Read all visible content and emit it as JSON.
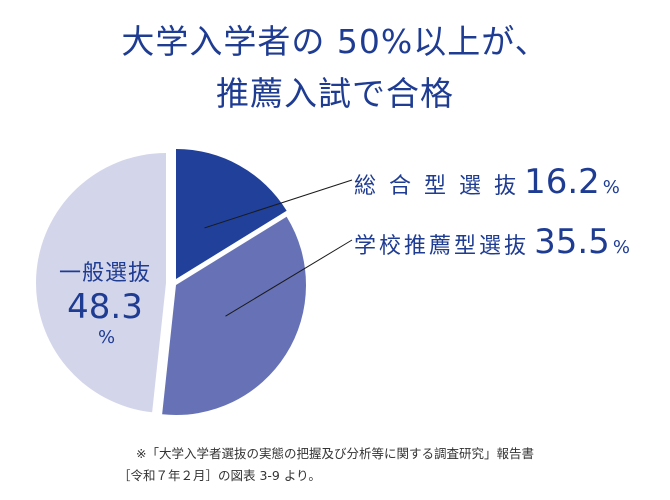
{
  "title_line1": "大学入学者の 50%以上が、",
  "title_line2": "推薦入試で合格",
  "chart_data": {
    "type": "pie",
    "unit": "%",
    "slices": [
      {
        "label": "総 合 型 選 抜",
        "value": 16.2,
        "display": "16.2",
        "color": "#20409a"
      },
      {
        "label": "学校推薦型選抜",
        "value": 35.5,
        "display": "35.5",
        "color": "#6672b5"
      },
      {
        "label": "一般選抜",
        "value": 48.3,
        "display": "48.3",
        "color": "#d3d5ea"
      }
    ]
  },
  "source_note_line1": "※「大学入学者選抜の実態の把握及び分析等に関する調査研究」報告書",
  "source_note_line2": "［令和７年２月］の図表 3-9 より。"
}
